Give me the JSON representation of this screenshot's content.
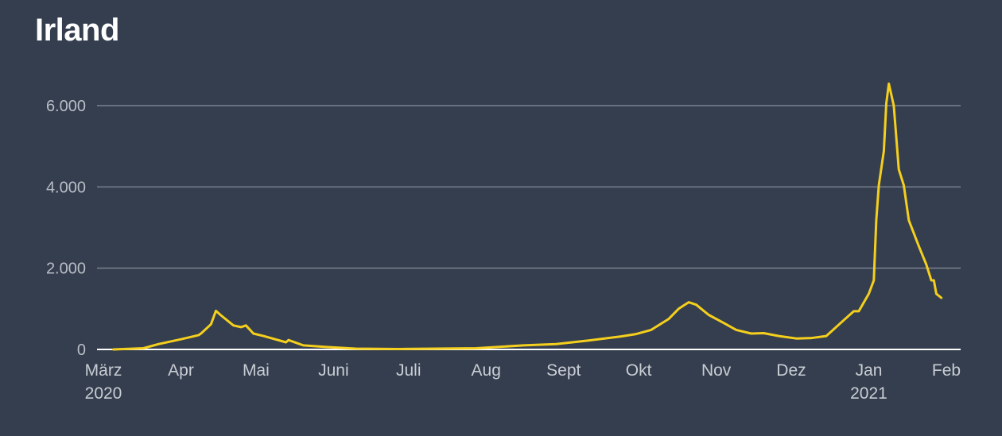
{
  "title": "Irland",
  "chart_data": {
    "type": "line",
    "title": "Irland",
    "xlabel": "",
    "ylabel": "",
    "xlim": [
      "2020-03-01",
      "2021-02-01"
    ],
    "ylim": [
      0,
      6000
    ],
    "grid": true,
    "line_color": "#f5cf1d",
    "y_ticks": [
      {
        "value": 0,
        "label": "0"
      },
      {
        "value": 2000,
        "label": "2.000"
      },
      {
        "value": 4000,
        "label": "4.000"
      },
      {
        "value": 6000,
        "label": "6.000"
      }
    ],
    "x_ticks": [
      {
        "date": "2020-03-01",
        "label": "März",
        "sub": "2020"
      },
      {
        "date": "2020-04-01",
        "label": "Apr"
      },
      {
        "date": "2020-05-01",
        "label": "Mai"
      },
      {
        "date": "2020-06-01",
        "label": "Juni"
      },
      {
        "date": "2020-07-01",
        "label": "Juli"
      },
      {
        "date": "2020-08-01",
        "label": "Aug"
      },
      {
        "date": "2020-09-01",
        "label": "Sept"
      },
      {
        "date": "2020-10-01",
        "label": "Okt"
      },
      {
        "date": "2020-11-01",
        "label": "Nov"
      },
      {
        "date": "2020-12-01",
        "label": "Dez"
      },
      {
        "date": "2021-01-01",
        "label": "Jan",
        "sub": "2021"
      },
      {
        "date": "2021-02-01",
        "label": "Feb"
      }
    ],
    "series": [
      {
        "x": [
          "2020-03-05",
          "2020-03-17",
          "2020-03-23",
          "2020-04-01",
          "2020-04-08",
          "2020-04-09",
          "2020-04-13",
          "2020-04-15",
          "2020-04-17",
          "2020-04-22",
          "2020-04-25",
          "2020-04-27",
          "2020-04-30",
          "2020-05-04",
          "2020-05-13",
          "2020-05-14",
          "2020-05-20",
          "2020-05-29",
          "2020-06-10",
          "2020-06-27",
          "2020-07-28",
          "2020-08-16",
          "2020-08-29",
          "2020-09-11",
          "2020-09-24",
          "2020-09-30",
          "2020-10-06",
          "2020-10-13",
          "2020-10-17",
          "2020-10-21",
          "2020-10-24",
          "2020-10-29",
          "2020-11-04",
          "2020-11-09",
          "2020-11-15",
          "2020-11-20",
          "2020-11-26",
          "2020-12-03",
          "2020-12-09",
          "2020-12-15",
          "2020-12-22",
          "2020-12-26",
          "2020-12-28",
          "2021-01-01",
          "2021-01-03",
          "2021-01-04",
          "2021-01-05",
          "2021-01-07",
          "2021-01-08",
          "2021-01-09",
          "2021-01-11",
          "2021-01-12",
          "2021-01-13",
          "2021-01-15",
          "2021-01-17",
          "2021-01-21",
          "2021-01-24",
          "2021-01-26",
          "2021-01-27",
          "2021-01-28",
          "2021-01-30"
        ],
        "y": [
          0,
          30,
          130,
          250,
          350,
          390,
          620,
          950,
          840,
          590,
          550,
          590,
          390,
          330,
          175,
          230,
          100,
          60,
          20,
          10,
          30,
          100,
          130,
          220,
          320,
          380,
          480,
          750,
          1000,
          1160,
          1100,
          850,
          650,
          480,
          390,
          400,
          330,
          270,
          280,
          330,
          720,
          940,
          940,
          1370,
          1700,
          3180,
          4040,
          4880,
          6050,
          6540,
          6000,
          5210,
          4430,
          4040,
          3180,
          2540,
          2090,
          1700,
          1700,
          1370,
          1270
        ]
      }
    ]
  }
}
